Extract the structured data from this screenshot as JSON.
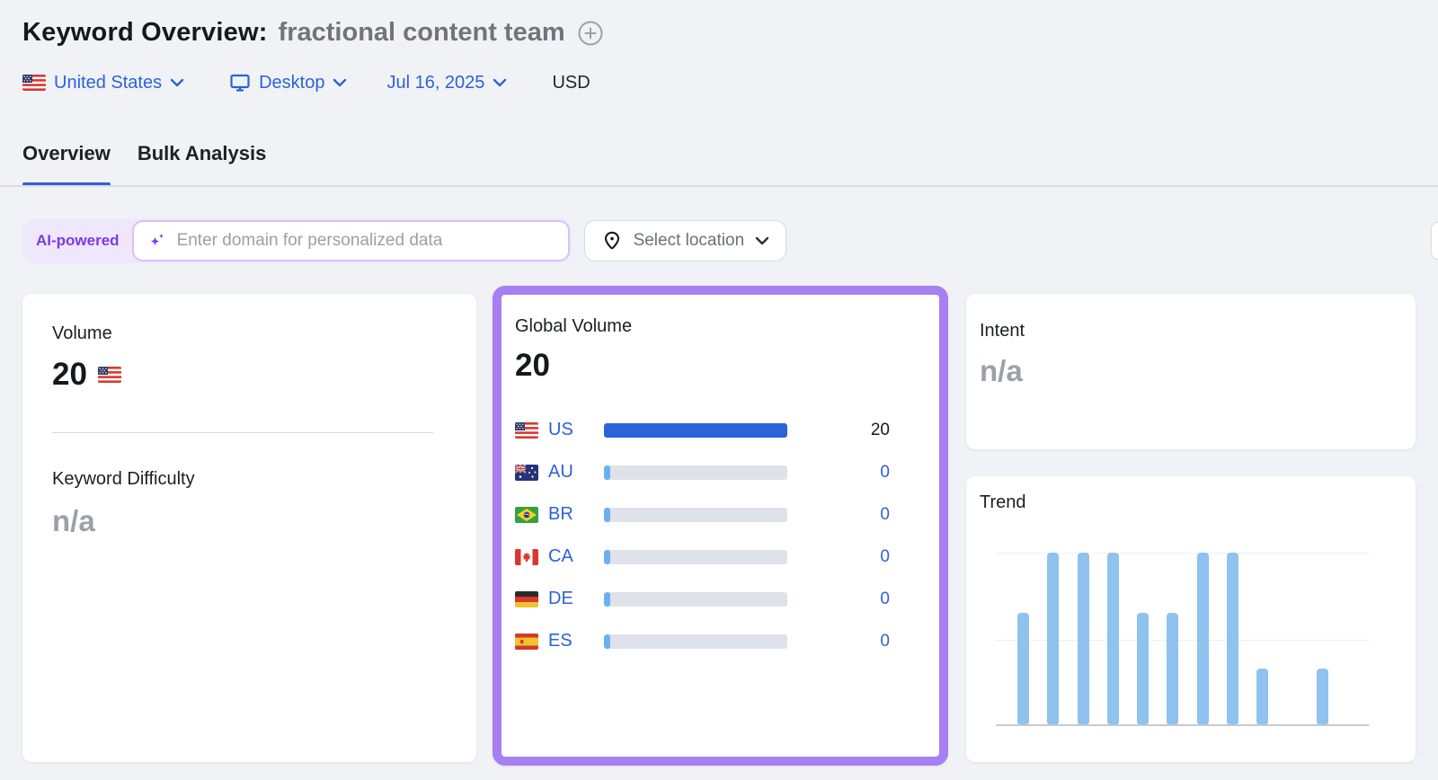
{
  "header": {
    "title": "Keyword Overview:",
    "keyword": "fractional content team",
    "add_icon": "plus-circle-icon"
  },
  "filters": {
    "country": "United States",
    "country_flag": "us",
    "device": "Desktop",
    "date": "Jul 16, 2025",
    "currency": "USD"
  },
  "tabs": {
    "overview": "Overview",
    "bulk": "Bulk Analysis",
    "active": "Overview"
  },
  "controls": {
    "ai_badge": "AI-powered",
    "domain_placeholder": "Enter domain for personalized data",
    "domain_value": "",
    "location_button": "Select location"
  },
  "cards": {
    "volume": {
      "title": "Volume",
      "value": "20",
      "flag": "us"
    },
    "keyword_difficulty": {
      "title": "Keyword Difficulty",
      "value": "n/a"
    },
    "global_volume": {
      "title": "Global Volume",
      "value": "20",
      "rows": [
        {
          "flag": "us",
          "code": "US",
          "value": "20",
          "share": 1
        },
        {
          "flag": "au",
          "code": "AU",
          "value": "0",
          "share": 0.035
        },
        {
          "flag": "br",
          "code": "BR",
          "value": "0",
          "share": 0.035
        },
        {
          "flag": "ca",
          "code": "CA",
          "value": "0",
          "share": 0.035
        },
        {
          "flag": "de",
          "code": "DE",
          "value": "0",
          "share": 0.035
        },
        {
          "flag": "es",
          "code": "ES",
          "value": "0",
          "share": 0.035
        }
      ]
    },
    "intent": {
      "title": "Intent",
      "value": "n/a"
    },
    "trend": {
      "title": "Trend"
    }
  },
  "chart_data": [
    {
      "id": "global-volume-bars",
      "type": "bar",
      "orientation": "horizontal",
      "categories": [
        "US",
        "AU",
        "BR",
        "CA",
        "DE",
        "ES"
      ],
      "values": [
        20,
        0,
        0,
        0,
        0,
        0
      ],
      "title": "Global Volume",
      "xlabel": "",
      "ylabel": "",
      "xlim": [
        0,
        20
      ],
      "legend": false,
      "grid": false
    },
    {
      "id": "trend-monthly",
      "type": "bar",
      "categories": [
        "m1",
        "m2",
        "m3",
        "m4",
        "m5",
        "m6",
        "m7",
        "m8",
        "m9",
        "m10",
        "m11",
        "m12"
      ],
      "values": [
        0.65,
        1,
        1,
        1,
        0.65,
        0.65,
        1,
        1,
        0.33,
        0,
        0.33,
        0
      ],
      "title": "Trend",
      "xlabel": "",
      "ylabel": "",
      "ylim": [
        0,
        1
      ],
      "grid": true,
      "gridlines_at": [
        0.5,
        1
      ],
      "legend": false
    }
  ],
  "colors": {
    "page_bg": "#f1f2f6",
    "link_blue": "#2b62d9",
    "tab_underline": "#2b62d9",
    "purple_highlight_border": "#a87ff2",
    "ai_badge_bg": "#efe7fc",
    "ai_badge_text": "#7b3be6",
    "us_bar_fill": "#2d63d8",
    "bar_track": "#dfe2ea",
    "bar_mini_fill": "#68b1f3",
    "trend_bar": "#8fc2ee",
    "na_gray": "#9ba1ab",
    "keyword_gray": "#70747c"
  }
}
